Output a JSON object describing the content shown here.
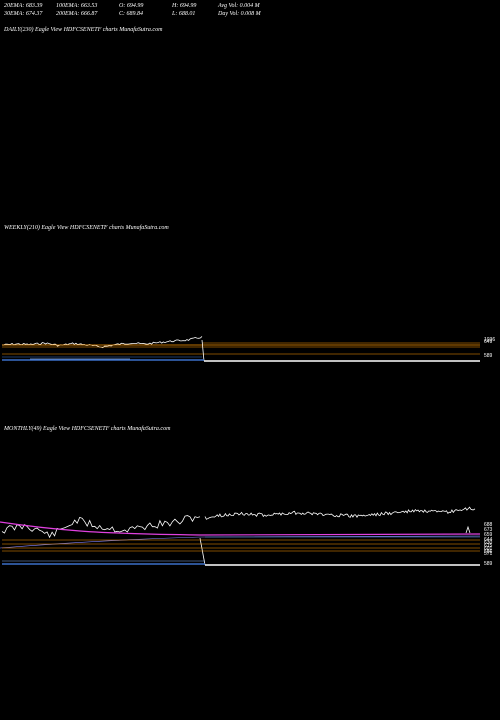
{
  "stats": {
    "ema20": "20EMA: 683.39",
    "ema100": "100EMA: 663.53",
    "open": "O: 694.99",
    "high": "H: 694.99",
    "avg_vol": "Avg Vol: 0.004  M",
    "ema30": "30EMA: 674.37",
    "ema200": "200EMA: 666.87",
    "close": "C: 689.84",
    "low": "L: 688.01",
    "day_vol": "Day Vol: 0.008  M"
  },
  "panels": {
    "daily_label": "DAILY(230) Eagle   View  HDFCSENETF charts MunafaSutra.com",
    "weekly_label": "WEEKLY(210) Eagle   View  HDFCSENETF charts MunafaSutra.com",
    "monthly_label": "MONTHLY(49) Eagle   View  HDFCSENETF charts MunafaSutra.com"
  },
  "weekly_ticks": [
    "1036",
    "649",
    "589"
  ],
  "monthly_ticks": [
    "688",
    "673",
    "659",
    "644",
    "630",
    "615",
    "601",
    "586",
    "571",
    "589"
  ],
  "colors": {
    "price": "#ffffff",
    "ema_orange": "#ff9900",
    "ema_magenta": "#e040e0",
    "volume_blue": "#3a6fc8",
    "level_white": "#ffffff"
  },
  "chart_data": [
    {
      "type": "line",
      "title": "WEEKLY(210) Eagle   View  HDFCSENETF charts MunafaSutra.com",
      "series": [
        {
          "name": "",
          "values": [
            1020,
            1022,
            1021,
            1024,
            1019,
            1023,
            1020,
            1016,
            1021,
            1024,
            1022,
            1025,
            1028,
            1030,
            1036,
            589
          ]
        }
      ]
    },
    {
      "type": "line",
      "title": "MONTHLY(49) Eagle   View  HDFCSENETF charts MunafaSutra.com",
      "series": [
        {
          "name": "",
          "values": [
            630,
            644,
            615,
            659,
            640,
            630,
            644,
            652,
            673,
            589,
            660,
            672,
            668,
            675,
            670,
            665,
            672,
            680,
            675,
            688
          ]
        }
      ]
    }
  ]
}
